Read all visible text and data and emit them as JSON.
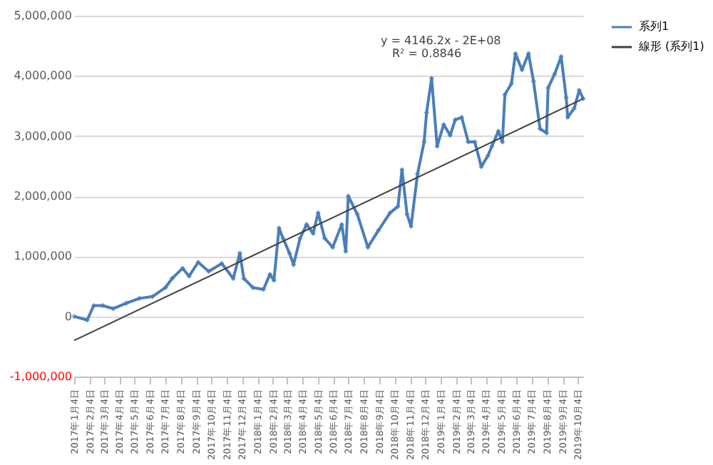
{
  "chart_data": {
    "type": "line",
    "legend": "right",
    "grid": "y",
    "marker": "diamond",
    "line_style": "solid",
    "ylim": [
      -1000000,
      5000000
    ],
    "yticks": [
      {
        "value": -1000000,
        "label": "-1,000,000"
      },
      {
        "value": 0,
        "label": "0"
      },
      {
        "value": 1000000,
        "label": "1,000,000"
      },
      {
        "value": 2000000,
        "label": "2,000,000"
      },
      {
        "value": 3000000,
        "label": "3,000,000"
      },
      {
        "value": 4000000,
        "label": "4,000,000"
      },
      {
        "value": 5000000,
        "label": "5,000,000"
      }
    ],
    "xlim": [
      "2017-01-04",
      "2019-10-15"
    ],
    "xticks": [
      {
        "value": "2017-01-04",
        "label": "2017年1月4日"
      },
      {
        "value": "2017-02-04",
        "label": "2017年2月4日"
      },
      {
        "value": "2017-03-04",
        "label": "2017年3月4日"
      },
      {
        "value": "2017-04-04",
        "label": "2017年4月4日"
      },
      {
        "value": "2017-05-04",
        "label": "2017年5月4日"
      },
      {
        "value": "2017-06-04",
        "label": "2017年6月4日"
      },
      {
        "value": "2017-07-04",
        "label": "2017年7月4日"
      },
      {
        "value": "2017-08-04",
        "label": "2017年8月4日"
      },
      {
        "value": "2017-09-04",
        "label": "2017年9月4日"
      },
      {
        "value": "2017-10-04",
        "label": "2017年10月4日"
      },
      {
        "value": "2017-11-04",
        "label": "2017年11月4日"
      },
      {
        "value": "2017-12-04",
        "label": "2017年12月4日"
      },
      {
        "value": "2018-01-04",
        "label": "2018年1月4日"
      },
      {
        "value": "2018-02-04",
        "label": "2018年2月4日"
      },
      {
        "value": "2018-03-04",
        "label": "2018年3月4日"
      },
      {
        "value": "2018-04-04",
        "label": "2018年4月4日"
      },
      {
        "value": "2018-05-04",
        "label": "2018年5月4日"
      },
      {
        "value": "2018-06-04",
        "label": "2018年6月4日"
      },
      {
        "value": "2018-07-04",
        "label": "2018年7月4日"
      },
      {
        "value": "2018-08-04",
        "label": "2018年8月4日"
      },
      {
        "value": "2018-09-04",
        "label": "2018年9月4日"
      },
      {
        "value": "2018-10-04",
        "label": "2018年10月4日"
      },
      {
        "value": "2018-11-04",
        "label": "2018年11月4日"
      },
      {
        "value": "2018-12-04",
        "label": "2018年12月4日"
      },
      {
        "value": "2019-01-04",
        "label": "2019年1月4日"
      },
      {
        "value": "2019-02-04",
        "label": "2019年2月4日"
      },
      {
        "value": "2019-03-04",
        "label": "2019年3月4日"
      },
      {
        "value": "2019-04-04",
        "label": "2019年4月4日"
      },
      {
        "value": "2019-05-04",
        "label": "2019年5月4日"
      },
      {
        "value": "2019-06-04",
        "label": "2019年6月4日"
      },
      {
        "value": "2019-07-04",
        "label": "2019年7月4日"
      },
      {
        "value": "2019-08-04",
        "label": "2019年8月4日"
      },
      {
        "value": "2019-09-04",
        "label": "2019年9月4日"
      },
      {
        "value": "2019-10-04",
        "label": "2019年10月4日"
      }
    ],
    "annotations": [
      "y = 4146.2x - 2E+08",
      "R² = 0.8846"
    ],
    "series": [
      {
        "name": "系列1",
        "color": "#4a7ebb",
        "x": [
          "2017-01-04",
          "2017-01-30",
          "2017-02-12",
          "2017-03-02",
          "2017-03-23",
          "2017-04-18",
          "2017-05-14",
          "2017-06-09",
          "2017-07-05",
          "2017-07-18",
          "2017-08-08",
          "2017-08-21",
          "2017-09-08",
          "2017-09-29",
          "2017-10-25",
          "2017-11-17",
          "2017-11-30",
          "2017-12-08",
          "2017-12-26",
          "2018-01-16",
          "2018-01-29",
          "2018-02-06",
          "2018-02-16",
          "2018-02-24",
          "2018-03-09",
          "2018-03-17",
          "2018-03-30",
          "2018-04-12",
          "2018-04-25",
          "2018-05-05",
          "2018-05-18",
          "2018-06-03",
          "2018-06-21",
          "2018-06-29",
          "2018-07-04",
          "2018-07-22",
          "2018-08-12",
          "2018-09-02",
          "2018-09-25",
          "2018-10-11",
          "2018-10-19",
          "2018-10-29",
          "2018-11-06",
          "2018-11-19",
          "2018-12-02",
          "2018-12-07",
          "2018-12-17",
          "2018-12-28",
          "2019-01-10",
          "2019-01-23",
          "2019-02-02",
          "2019-02-15",
          "2019-02-28",
          "2019-03-13",
          "2019-03-26",
          "2019-04-08",
          "2019-04-16",
          "2019-04-29",
          "2019-05-07",
          "2019-05-12",
          "2019-05-25",
          "2019-06-02",
          "2019-06-15",
          "2019-06-28",
          "2019-07-08",
          "2019-07-21",
          "2019-08-03",
          "2019-08-06",
          "2019-08-19",
          "2019-09-01",
          "2019-09-11",
          "2019-09-14",
          "2019-09-27",
          "2019-10-07",
          "2019-10-15"
        ],
        "values": [
          0,
          -60000,
          180000,
          180000,
          130000,
          220000,
          300000,
          330000,
          480000,
          630000,
          800000,
          670000,
          900000,
          750000,
          880000,
          630000,
          1050000,
          630000,
          480000,
          450000,
          700000,
          600000,
          1470000,
          1300000,
          1050000,
          860000,
          1300000,
          1530000,
          1380000,
          1720000,
          1300000,
          1150000,
          1530000,
          1080000,
          2000000,
          1700000,
          1150000,
          1430000,
          1720000,
          1830000,
          2440000,
          1700000,
          1500000,
          2370000,
          2900000,
          3390000,
          3960000,
          2830000,
          3190000,
          3010000,
          3270000,
          3310000,
          2900000,
          2900000,
          2490000,
          2670000,
          2830000,
          3080000,
          2900000,
          3690000,
          3870000,
          4370000,
          4100000,
          4370000,
          3910000,
          3120000,
          3050000,
          3800000,
          4030000,
          4320000,
          3640000,
          3310000,
          3460000,
          3760000,
          3620000
        ]
      },
      {
        "name": "線形 (系列1)",
        "type": "line",
        "marker": "none",
        "color": "#404040",
        "x": [
          "2017-01-04",
          "2019-10-15"
        ],
        "values": [
          -400000,
          3620000
        ]
      }
    ]
  }
}
